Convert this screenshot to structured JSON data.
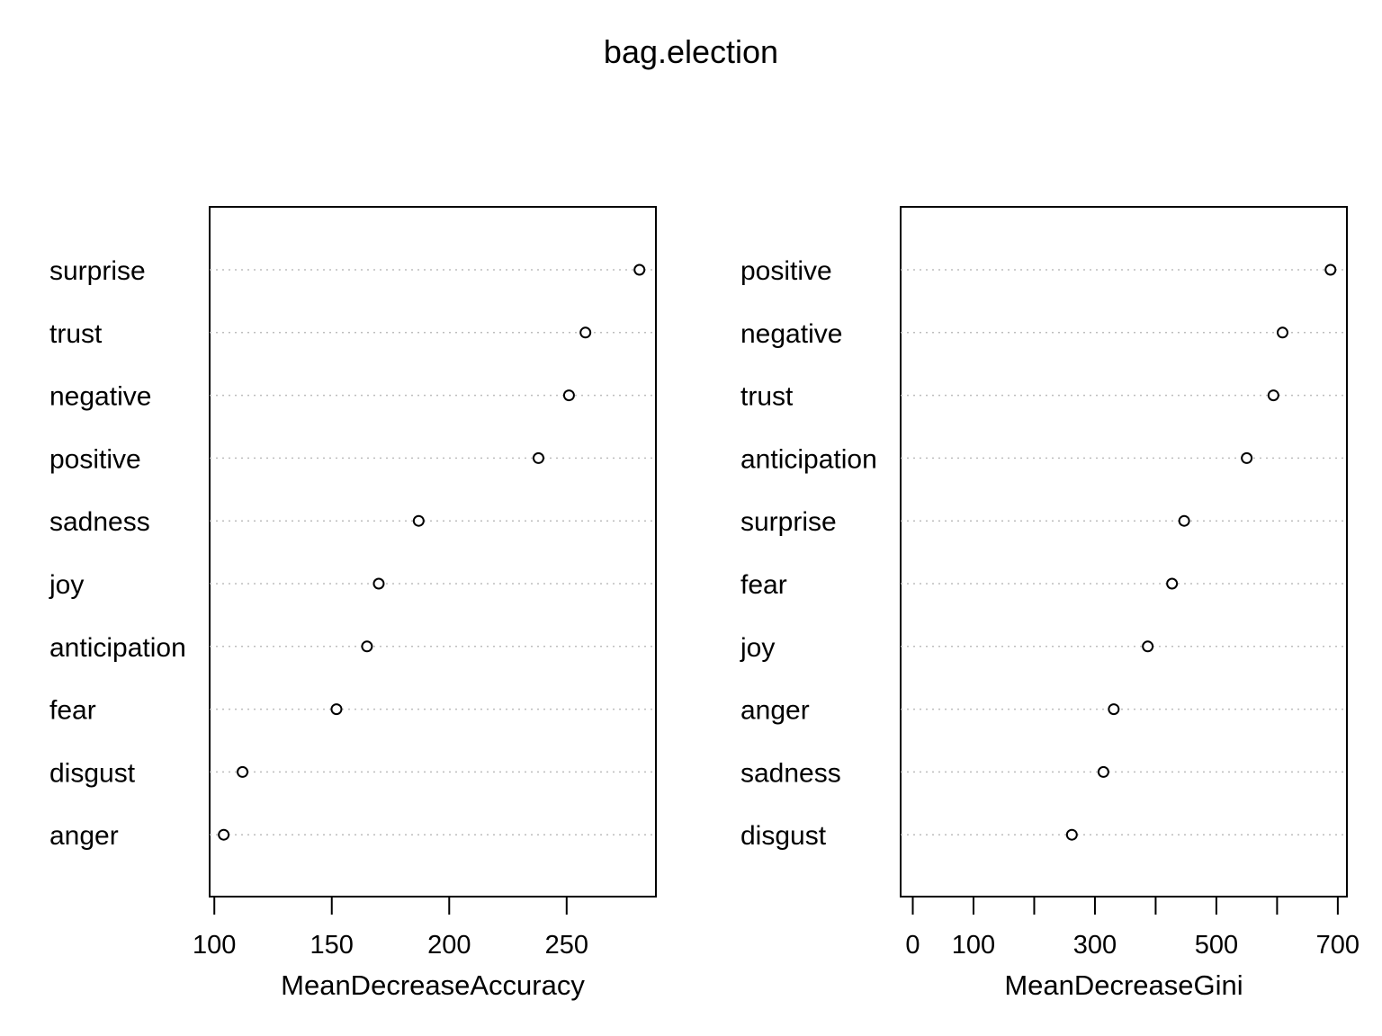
{
  "title": "bag.election",
  "chart_data": [
    {
      "type": "scatter",
      "panel": "left",
      "xlabel": "MeanDecreaseAccuracy",
      "xlim": [
        98,
        288
      ],
      "xticks": [
        100,
        150,
        200,
        250
      ],
      "categories": [
        "surprise",
        "trust",
        "negative",
        "positive",
        "sadness",
        "joy",
        "anticipation",
        "fear",
        "disgust",
        "anger"
      ],
      "values": [
        281,
        258,
        251,
        238,
        187,
        170,
        165,
        152,
        112,
        104
      ],
      "grid": "dotted-horizontal"
    },
    {
      "type": "scatter",
      "panel": "right",
      "xlabel": "MeanDecreaseGini",
      "xlim": [
        -20,
        715
      ],
      "xticks": [
        0,
        100,
        200,
        300,
        400,
        500,
        600,
        700
      ],
      "xtick_labels": [
        "0",
        "100",
        "",
        "300",
        "",
        "500",
        "",
        "700"
      ],
      "categories": [
        "positive",
        "negative",
        "trust",
        "anticipation",
        "surprise",
        "fear",
        "joy",
        "anger",
        "sadness",
        "disgust"
      ],
      "values": [
        688,
        609,
        594,
        550,
        447,
        427,
        387,
        331,
        314,
        262
      ],
      "grid": "dotted-horizontal"
    }
  ]
}
